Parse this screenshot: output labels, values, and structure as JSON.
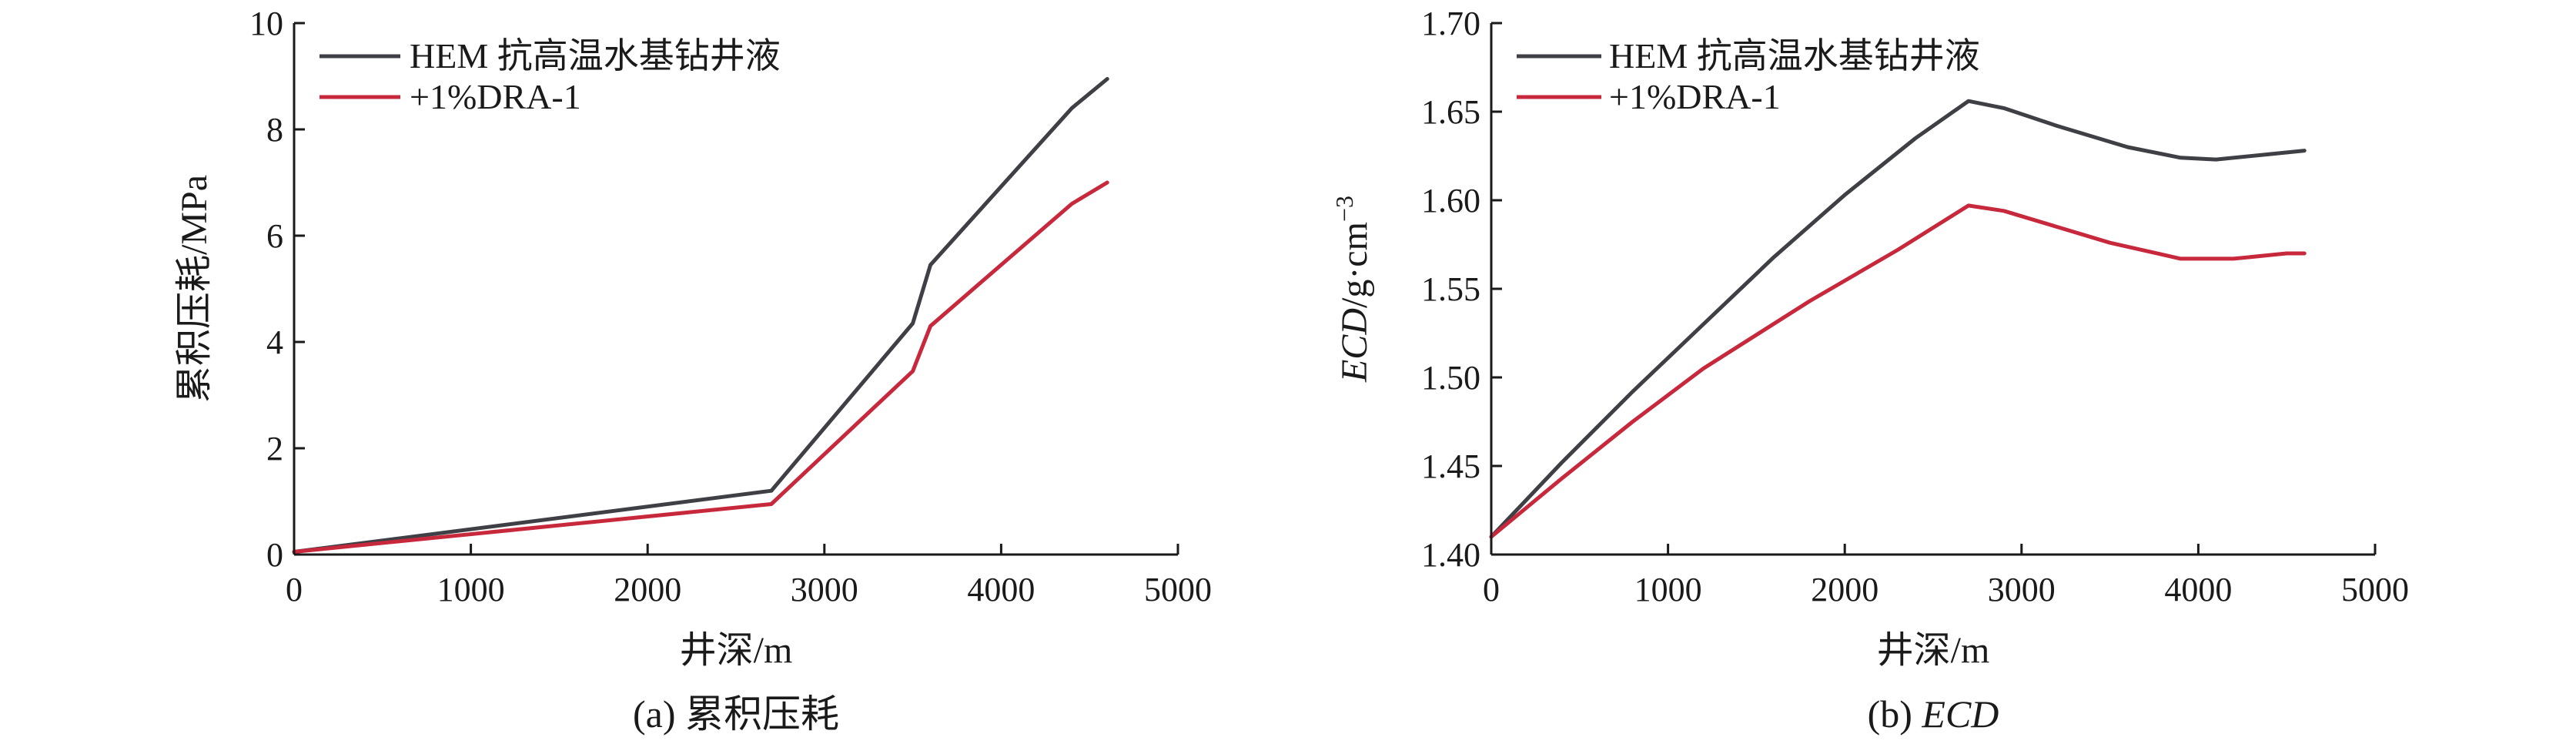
{
  "colors": {
    "series_hem": "#3f3f46",
    "series_dra": "#c8283c",
    "axis": "#1a1a1a"
  },
  "chart_data": [
    {
      "type": "line",
      "title": "",
      "caption": "(a) 累积压耗",
      "xlabel": "井深/m",
      "ylabel": "累积压耗/MPa",
      "xlim": [
        0,
        5000
      ],
      "ylim": [
        0,
        10
      ],
      "xticks": [
        0,
        1000,
        2000,
        3000,
        4000,
        5000
      ],
      "xtick_labels": [
        "0",
        "1000",
        "2000",
        "3000",
        "4000",
        "5000"
      ],
      "yticks": [
        0,
        2,
        4,
        6,
        8,
        10
      ],
      "ytick_labels": [
        "0",
        "2",
        "4",
        "6",
        "8",
        "10"
      ],
      "grid": false,
      "legend_position": "top-left",
      "series": [
        {
          "name": "HEM 抗高温水基钻井液",
          "x": [
            0,
            2700,
            3500,
            3600,
            4400,
            4600
          ],
          "y": [
            0.05,
            1.2,
            4.35,
            5.45,
            8.4,
            8.95
          ]
        },
        {
          "name": "+1%DRA-1",
          "x": [
            0,
            2700,
            3500,
            3600,
            4400,
            4600
          ],
          "y": [
            0.05,
            0.95,
            3.45,
            4.3,
            6.6,
            7.0
          ]
        }
      ]
    },
    {
      "type": "line",
      "title": "",
      "caption_prefix": "(b) ",
      "caption_italic": "ECD",
      "xlabel": "井深/m",
      "ylabel_italic": "ECD",
      "ylabel_rest": "/g·cm",
      "ylabel_sup": "−3",
      "xlim": [
        0,
        5000
      ],
      "ylim": [
        1.4,
        1.7
      ],
      "xticks": [
        0,
        1000,
        2000,
        3000,
        4000,
        5000
      ],
      "xtick_labels": [
        "0",
        "1000",
        "2000",
        "3000",
        "4000",
        "5000"
      ],
      "yticks": [
        1.4,
        1.45,
        1.5,
        1.55,
        1.6,
        1.65,
        1.7
      ],
      "ytick_labels": [
        "1.40",
        "1.45",
        "1.50",
        "1.55",
        "1.60",
        "1.65",
        "1.70"
      ],
      "grid": false,
      "legend_position": "top-left",
      "series": [
        {
          "name": "HEM 抗高温水基钻井液",
          "x": [
            0,
            400,
            800,
            1200,
            1600,
            2000,
            2400,
            2700,
            2900,
            3200,
            3600,
            3900,
            4100,
            4400,
            4600
          ],
          "y": [
            1.41,
            1.452,
            1.492,
            1.53,
            1.568,
            1.603,
            1.635,
            1.656,
            1.652,
            1.642,
            1.63,
            1.624,
            1.623,
            1.626,
            1.628
          ]
        },
        {
          "name": "+1%DRA-1",
          "x": [
            0,
            400,
            800,
            1200,
            1800,
            2300,
            2700,
            2900,
            3200,
            3500,
            3900,
            4200,
            4500,
            4600
          ],
          "y": [
            1.41,
            1.443,
            1.475,
            1.505,
            1.543,
            1.572,
            1.597,
            1.594,
            1.585,
            1.576,
            1.567,
            1.567,
            1.57,
            1.57
          ]
        }
      ]
    }
  ]
}
